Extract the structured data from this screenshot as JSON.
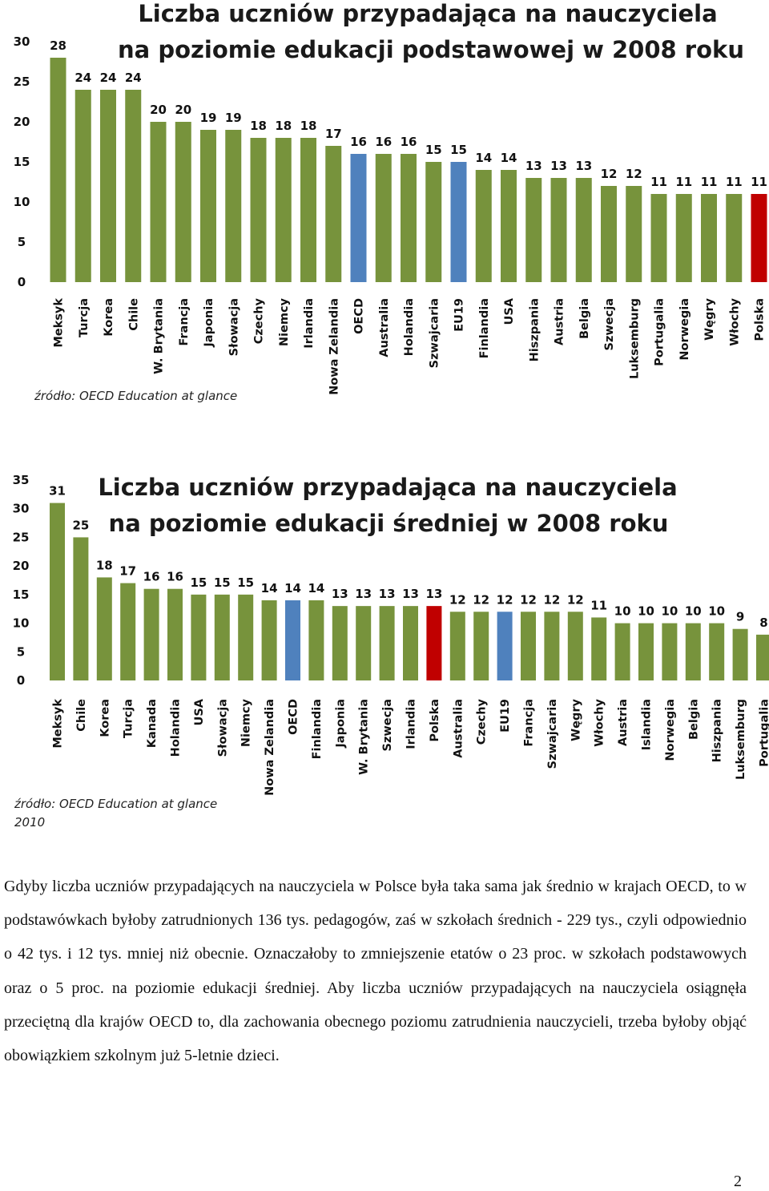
{
  "colors": {
    "default_bar": "#77933c",
    "highlight_bar": "#4f81bd",
    "poland_bar": "#c00000"
  },
  "chart_data": [
    {
      "type": "bar",
      "title": "Liczba uczniów przypadająca na nauczyciela na poziomie edukacji podstawowej w 2008 roku",
      "title_lines": [
        "Liczba uczniów przypadająca na nauczyciela",
        "na poziomie edukacji podstawowej w 2008 roku"
      ],
      "xlabel": "",
      "ylabel": "",
      "ylim": [
        0,
        30
      ],
      "yticks": [
        0,
        5,
        10,
        15,
        20,
        25,
        30
      ],
      "grid": false,
      "categories": [
        "Meksyk",
        "Turcja",
        "Korea",
        "Chile",
        "W. Brytania",
        "Francja",
        "Japonia",
        "Słowacja",
        "Czechy",
        "Niemcy",
        "Irlandia",
        "Nowa Zelandia",
        "OECD",
        "Australia",
        "Holandia",
        "Szwajcaria",
        "EU19",
        "Finlandia",
        "USA",
        "Hiszpania",
        "Austria",
        "Belgia",
        "Szwecja",
        "Luksemburg",
        "Portugalia",
        "Norwegia",
        "Węgry",
        "Włochy",
        "Polska"
      ],
      "values": [
        28,
        24,
        24,
        24,
        20,
        20,
        19,
        19,
        18,
        18,
        18,
        17,
        16,
        16,
        16,
        15,
        15,
        14,
        14,
        13,
        13,
        13,
        12,
        12,
        11,
        11,
        11,
        11,
        11
      ],
      "bar_colors": [
        "#77933c",
        "#77933c",
        "#77933c",
        "#77933c",
        "#77933c",
        "#77933c",
        "#77933c",
        "#77933c",
        "#77933c",
        "#77933c",
        "#77933c",
        "#77933c",
        "#4f81bd",
        "#77933c",
        "#77933c",
        "#77933c",
        "#4f81bd",
        "#77933c",
        "#77933c",
        "#77933c",
        "#77933c",
        "#77933c",
        "#77933c",
        "#77933c",
        "#77933c",
        "#77933c",
        "#77933c",
        "#77933c",
        "#c00000"
      ],
      "source": "źródło: OECD Education at glance"
    },
    {
      "type": "bar",
      "title": "Liczba uczniów przypadająca na nauczyciela na poziomie edukacji średniej w 2008 roku",
      "title_lines": [
        "Liczba uczniów przypadająca na nauczyciela",
        "na poziomie edukacji średniej w 2008 roku"
      ],
      "xlabel": "",
      "ylabel": "",
      "ylim": [
        0,
        35
      ],
      "yticks": [
        0,
        5,
        10,
        15,
        20,
        25,
        30,
        35
      ],
      "grid": false,
      "categories": [
        "Meksyk",
        "Chile",
        "Korea",
        "Turcja",
        "Kanada",
        "Holandia",
        "USA",
        "Słowacja",
        "Niemcy",
        "Nowa Zelandia",
        "OECD",
        "Finlandia",
        "Japonia",
        "W. Brytania",
        "Szwecja",
        "Irlandia",
        "Polska",
        "Australia",
        "Czechy",
        "EU19",
        "Francja",
        "Szwajcaria",
        "Węgry",
        "Włochy",
        "Austria",
        "Islandia",
        "Norwegia",
        "Belgia",
        "Hiszpania",
        "Luksemburg",
        "Portugalia"
      ],
      "values": [
        31,
        25,
        18,
        17,
        16,
        16,
        15,
        15,
        15,
        14,
        14,
        14,
        13,
        13,
        13,
        13,
        13,
        12,
        12,
        12,
        12,
        12,
        12,
        11,
        10,
        10,
        10,
        10,
        10,
        9,
        8
      ],
      "bar_colors": [
        "#77933c",
        "#77933c",
        "#77933c",
        "#77933c",
        "#77933c",
        "#77933c",
        "#77933c",
        "#77933c",
        "#77933c",
        "#77933c",
        "#4f81bd",
        "#77933c",
        "#77933c",
        "#77933c",
        "#77933c",
        "#77933c",
        "#c00000",
        "#77933c",
        "#77933c",
        "#4f81bd",
        "#77933c",
        "#77933c",
        "#77933c",
        "#77933c",
        "#77933c",
        "#77933c",
        "#77933c",
        "#77933c",
        "#77933c",
        "#77933c",
        "#77933c"
      ],
      "source": "źródło: OECD Education at glance",
      "source_line2": "2010"
    }
  ],
  "paragraph": "Gdyby liczba uczniów przypadających na nauczyciela w Polsce była taka sama jak średnio w krajach OECD, to w podstawówkach byłoby zatrudnionych 136 tys. pedagogów, zaś w szkołach średnich - 229 tys., czyli odpowiednio o 42 tys. i 12 tys. mniej niż obecnie. Oznaczałoby to zmniejszenie etatów o 23 proc. w szkołach podstawowych oraz o 5 proc. na poziomie edukacji średniej. Aby liczba uczniów przypadających na nauczyciela osiągnęła przeciętną dla krajów OECD to, dla zachowania obecnego poziomu zatrudnienia nauczycieli, trzeba byłoby objąć obowiązkiem szkolnym już 5-letnie dzieci.",
  "page_number": "2"
}
